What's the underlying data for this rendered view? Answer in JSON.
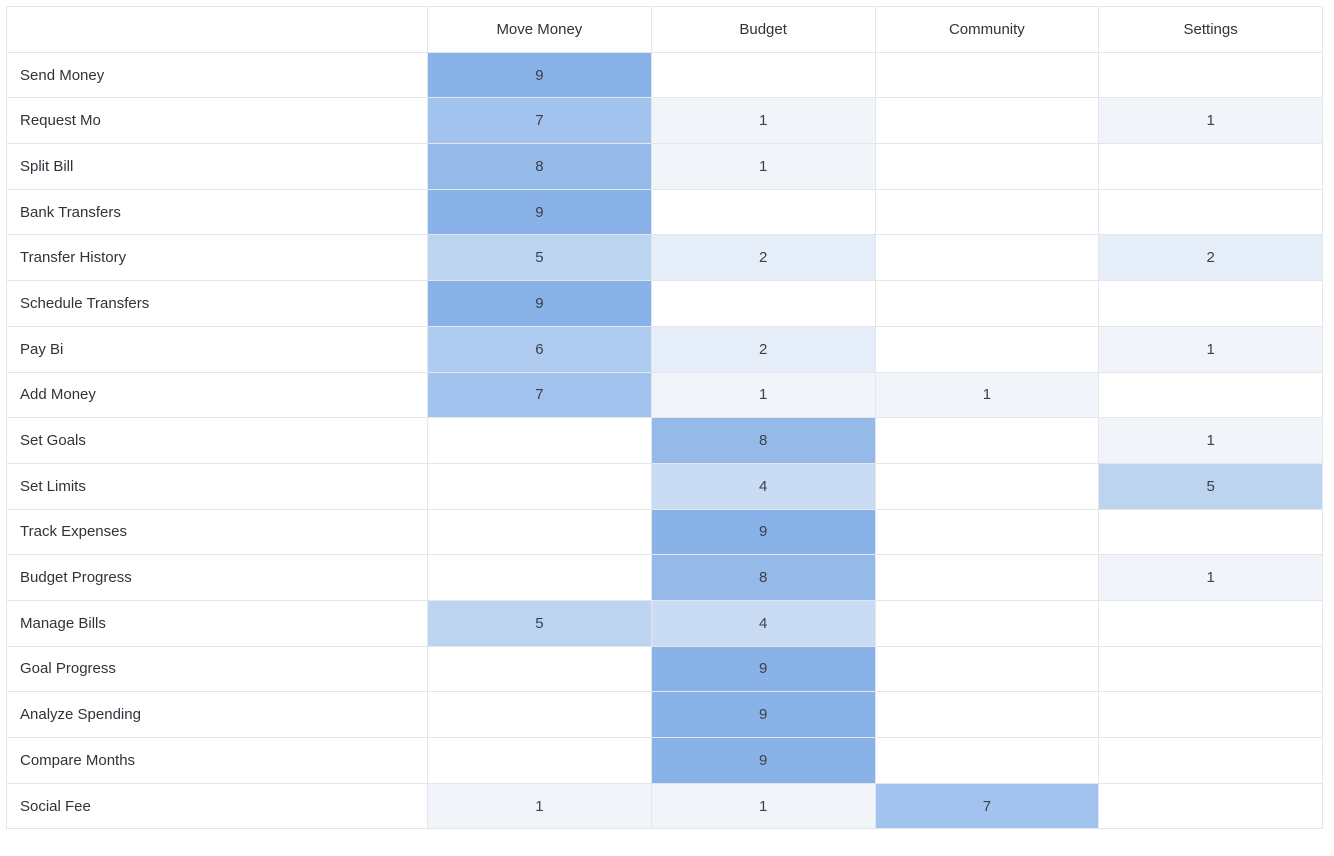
{
  "chart_data": {
    "type": "heatmap",
    "columns": [
      "Move Money",
      "Budget",
      "Community",
      "Settings"
    ],
    "rows": [
      "Send Money",
      "Request Mo",
      "Split Bill",
      "Bank Transfers",
      "Transfer History",
      "Schedule Transfers",
      "Pay Bi",
      "Add Money",
      "Set Goals",
      "Set Limits",
      "Track Expenses",
      "Budget Progress",
      "Manage Bills",
      "Goal Progress",
      "Analyze Spending",
      "Compare Months",
      "Social Fee"
    ],
    "values": [
      [
        9,
        null,
        null,
        null
      ],
      [
        7,
        1,
        null,
        1
      ],
      [
        8,
        1,
        null,
        null
      ],
      [
        9,
        null,
        null,
        null
      ],
      [
        5,
        2,
        null,
        2
      ],
      [
        9,
        null,
        null,
        null
      ],
      [
        6,
        2,
        null,
        1
      ],
      [
        7,
        1,
        1,
        null
      ],
      [
        null,
        8,
        null,
        1
      ],
      [
        null,
        4,
        null,
        5
      ],
      [
        null,
        9,
        null,
        null
      ],
      [
        null,
        8,
        null,
        1
      ],
      [
        5,
        4,
        null,
        null
      ],
      [
        null,
        9,
        null,
        null
      ],
      [
        null,
        9,
        null,
        null
      ],
      [
        null,
        9,
        null,
        null
      ],
      [
        1,
        1,
        7,
        null
      ]
    ],
    "value_range": [
      1,
      9
    ],
    "colors": {
      "low": "#f1f5fa",
      "high": "#88b2e8",
      "empty": "#ffffff",
      "grid": "#e3e6ea"
    }
  }
}
